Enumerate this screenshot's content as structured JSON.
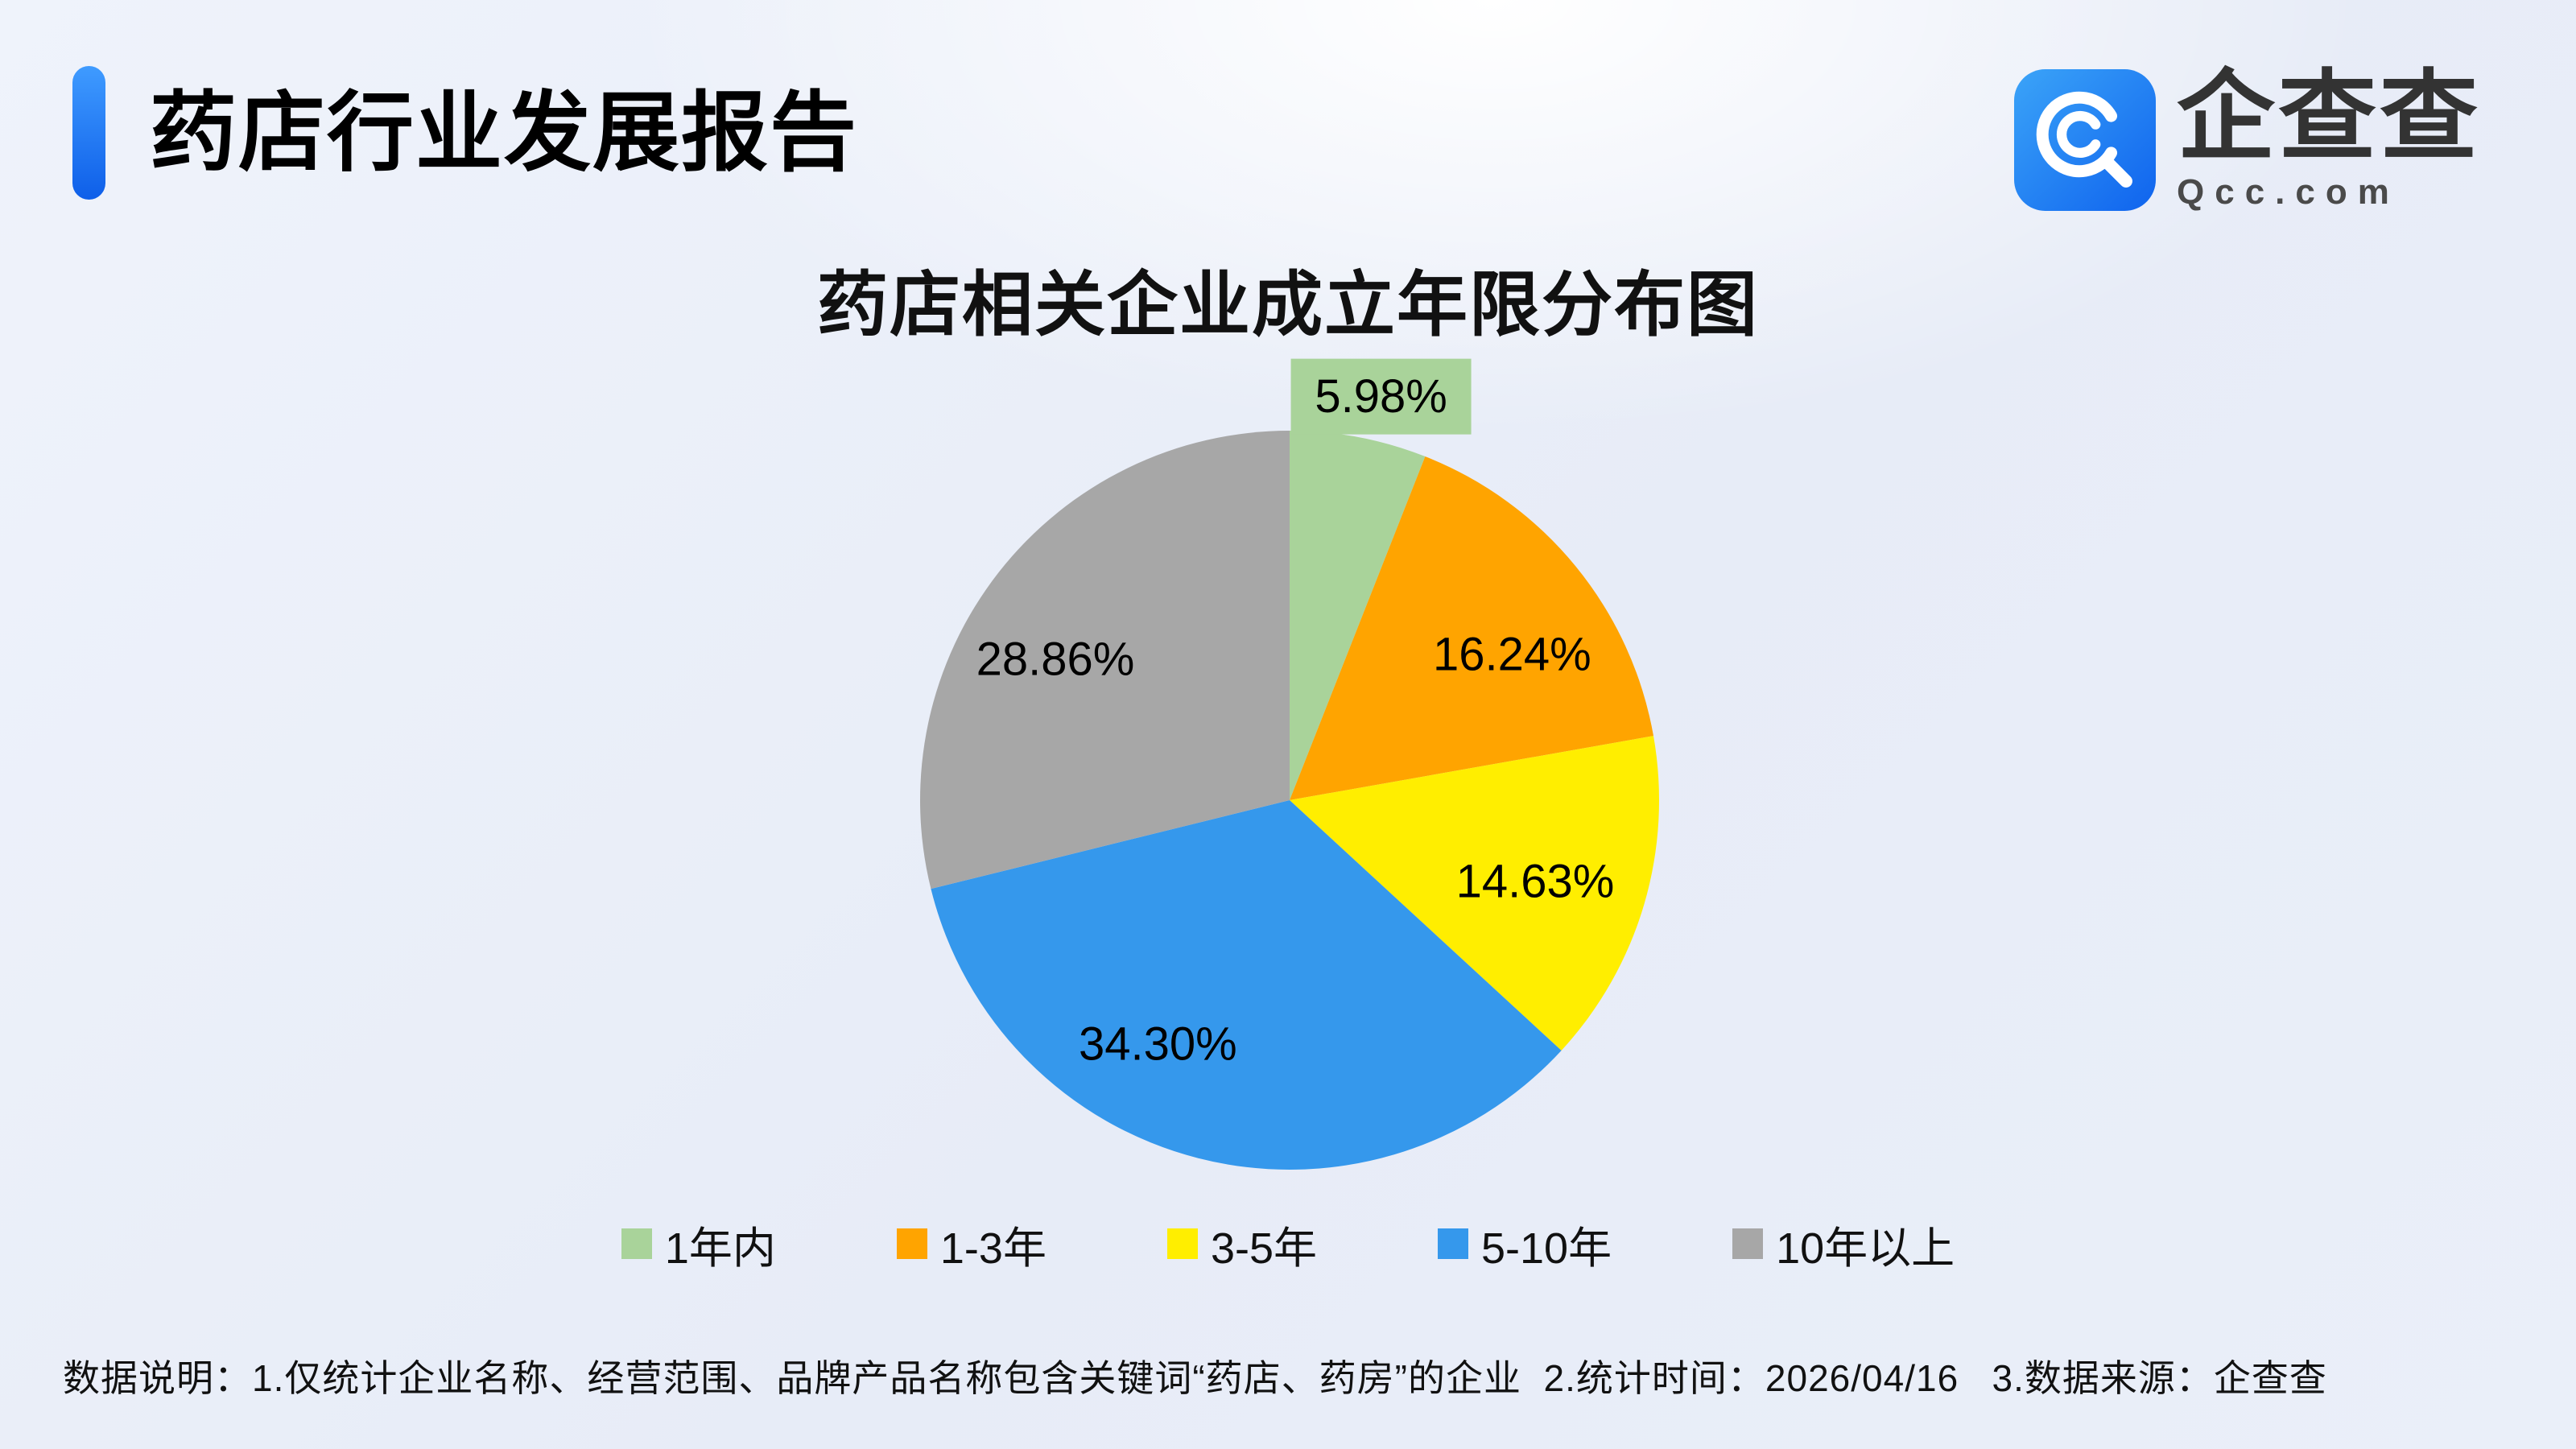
{
  "header": {
    "report_title": "药店行业发展报告",
    "logo": {
      "brand_name": "企查查",
      "brand_domain": "Qcc.com",
      "icon": "qcc-magnifier-icon",
      "brand_color": "#1b82f2"
    }
  },
  "chart_data": {
    "type": "pie",
    "title": "药店相关企业成立年限分布图",
    "unit": "%",
    "start_angle": "top",
    "direction": "clockwise",
    "legend_position": "bottom",
    "label_format": "percent-two-decimals",
    "slices": [
      {
        "label": "1年内",
        "value": 5.98,
        "display": "5.98%",
        "color": "#a9d39a",
        "label_outside": true
      },
      {
        "label": "1-3年",
        "value": 16.24,
        "display": "16.24%",
        "color": "#ffa400"
      },
      {
        "label": "3-5年",
        "value": 14.63,
        "display": "14.63%",
        "color": "#ffee00"
      },
      {
        "label": "5-10年",
        "value": 34.3,
        "display": "34.30%",
        "color": "#3598ec"
      },
      {
        "label": "10年以上",
        "value": 28.86,
        "display": "28.86%",
        "color": "#a7a7a7"
      }
    ]
  },
  "footer": {
    "note": "数据说明：1.仅统计企业名称、经营范围、品牌产品名称包含关键词“药店、药房”的企业  2.统计时间：2026/04/16   3.数据来源：企查查"
  }
}
